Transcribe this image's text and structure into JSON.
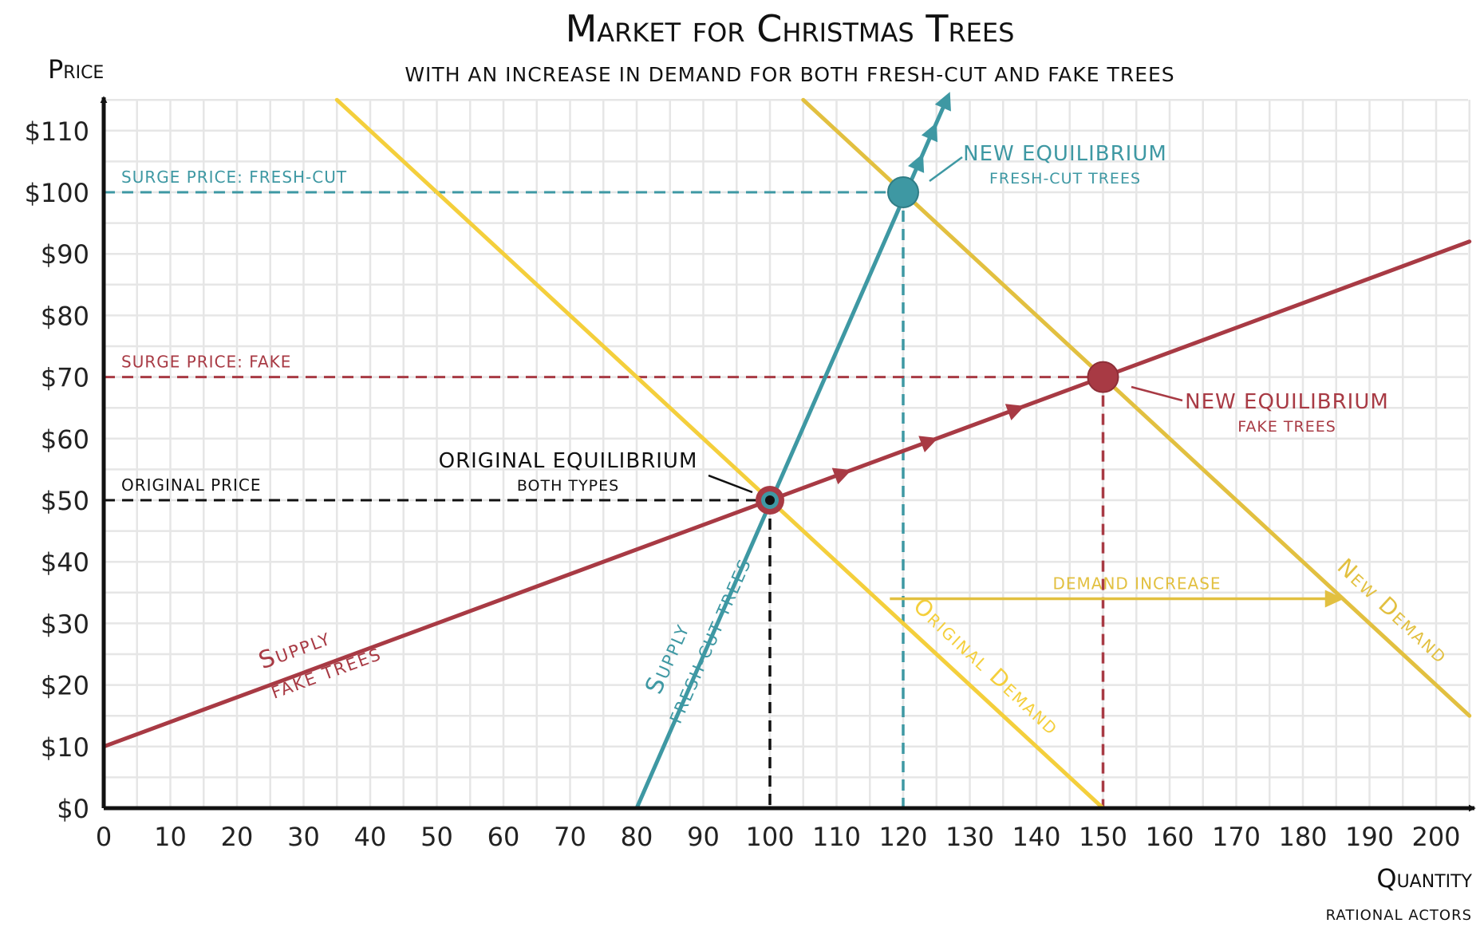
{
  "chart_data": {
    "type": "line",
    "title": "Market for Christmas Trees",
    "subtitle": "WITH AN INCREASE IN DEMAND FOR BOTH FRESH-CUT AND FAKE TREES",
    "xlabel": "Quantity",
    "ylabel": "Price",
    "credit": "RATIONAL ACTORS",
    "xlim": [
      0,
      205
    ],
    "ylim": [
      0,
      115
    ],
    "xticks": [
      0,
      10,
      20,
      30,
      40,
      50,
      60,
      70,
      80,
      90,
      100,
      110,
      120,
      130,
      140,
      150,
      160,
      170,
      180,
      190,
      200
    ],
    "yticks": [
      0,
      10,
      20,
      30,
      40,
      50,
      60,
      70,
      80,
      90,
      100,
      110
    ],
    "ytick_labels": [
      "$0",
      "$10",
      "$20",
      "$30",
      "$40",
      "$50",
      "$60",
      "$70",
      "$80",
      "$90",
      "$100",
      "$110"
    ],
    "grid": true,
    "series": [
      {
        "key": "supply_fake",
        "name": "Supply",
        "subname": "fake trees",
        "color": "#a83a44",
        "x": [
          0,
          205
        ],
        "y": [
          10,
          92
        ]
      },
      {
        "key": "supply_fresh",
        "name": "Supply",
        "subname": "fresh-cut trees",
        "color": "#3e98a3",
        "x": [
          80,
          126.5
        ],
        "y": [
          0,
          115
        ]
      },
      {
        "key": "original_demand",
        "name": "Original Demand",
        "color": "#f4cf3c",
        "x": [
          35,
          150
        ],
        "y": [
          115,
          0
        ]
      },
      {
        "key": "new_demand",
        "name": "New Demand",
        "color": "#e2c040",
        "x": [
          105,
          205
        ],
        "y": [
          115,
          15
        ]
      }
    ],
    "reference_lines": [
      {
        "label": "SURGE PRICE: FRESH-CUT",
        "y": 100,
        "x": 120,
        "color": "#3e98a3"
      },
      {
        "label": "SURGE PRICE: FAKE",
        "y": 70,
        "x": 150,
        "color": "#a83a44"
      },
      {
        "label": "ORIGINAL PRICE",
        "y": 50,
        "x": 100,
        "color": "#111111"
      }
    ],
    "points": [
      {
        "label": "ORIGINAL EQUILIBRIUM",
        "sublabel": "BOTH TYPES",
        "x": 100,
        "y": 50
      },
      {
        "label": "NEW EQUILIBRIUM",
        "sublabel": "FRESH-CUT TREES",
        "x": 120,
        "y": 100,
        "color": "#3e98a3"
      },
      {
        "label": "NEW EQUILIBRIUM",
        "sublabel": "FAKE TREES",
        "x": 150,
        "y": 70,
        "color": "#a83a44"
      }
    ],
    "annotations": [
      {
        "text": "DEMAND INCREASE",
        "from_x": 118,
        "to_x": 185,
        "y": 34
      }
    ]
  }
}
